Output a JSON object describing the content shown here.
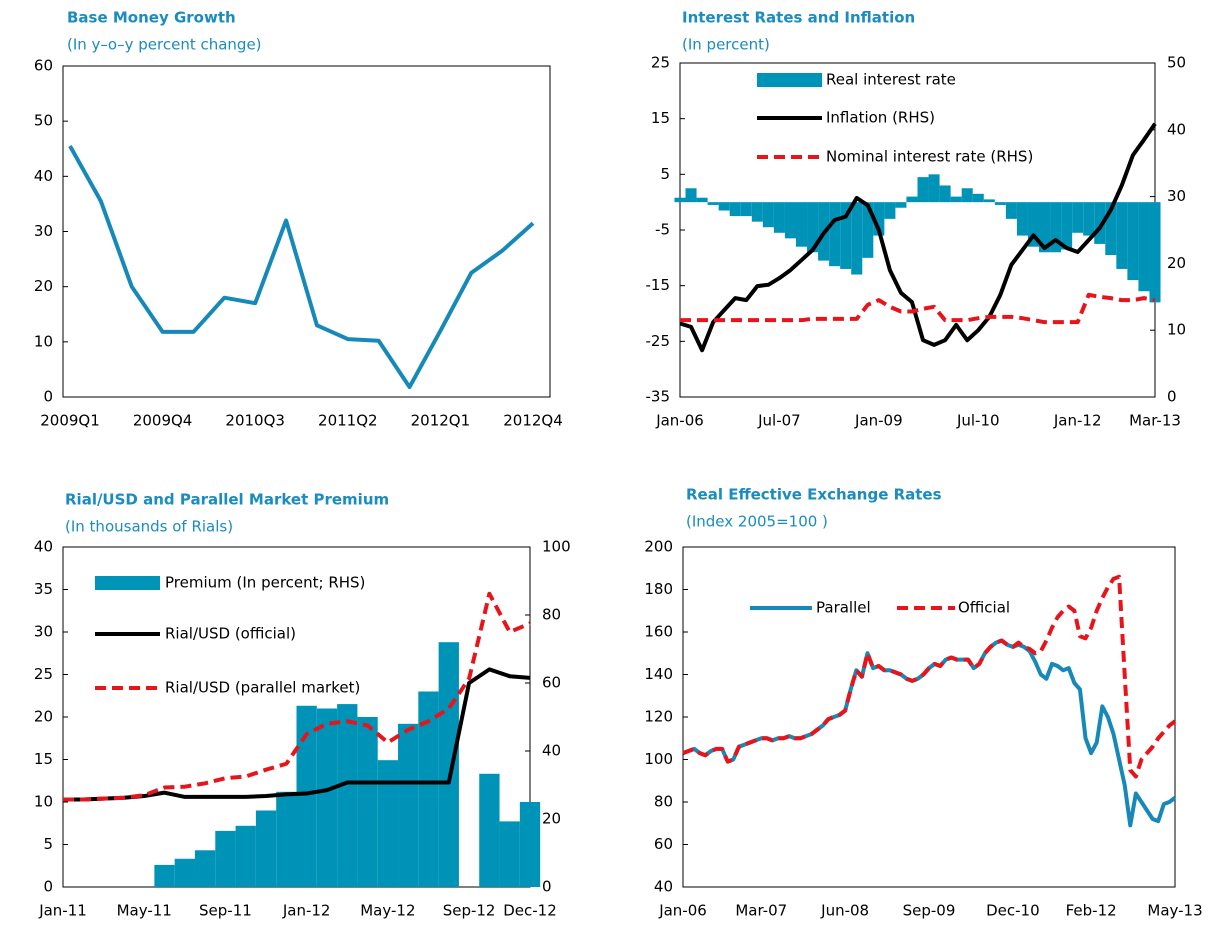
{
  "chart_data": [
    {
      "type": "line",
      "title": "Base Money  Growth",
      "subtitle": "(In y–o–y percent change)",
      "categories": [
        "2009Q1",
        null,
        null,
        "2009Q4",
        null,
        null,
        "2010Q3",
        null,
        null,
        "2011Q2",
        null,
        null,
        "2012Q1",
        null,
        null,
        "2012Q4"
      ],
      "values": [
        45.5,
        35.5,
        20,
        11.8,
        11.8,
        18,
        17,
        32,
        13,
        10.5,
        10.2,
        1.8,
        12,
        22.5,
        26.5,
        31.5
      ],
      "color": "#1689b9",
      "ylim": [
        0,
        60
      ],
      "yticks": [
        0,
        10,
        20,
        30,
        40,
        50,
        60
      ]
    },
    {
      "type": "combo",
      "title": "Interest Rates and Inflation",
      "subtitle": "(In percent)",
      "categories": [
        "Jan-06",
        null,
        null,
        null,
        null,
        null,
        null,
        null,
        null,
        "Jul-07",
        null,
        null,
        null,
        null,
        null,
        null,
        null,
        null,
        "Jan-09",
        null,
        null,
        null,
        null,
        null,
        null,
        null,
        null,
        "Jul-10",
        null,
        null,
        null,
        null,
        null,
        null,
        null,
        null,
        "Jan-12",
        null,
        null,
        null,
        null,
        null,
        null,
        "Mar-13"
      ],
      "series": [
        {
          "name": "Real interest rate",
          "type": "bar",
          "color": "#0093b8",
          "values": [
            0.8,
            2.5,
            0.8,
            -0.5,
            -1.5,
            -2.5,
            -2.5,
            -3.5,
            -4.5,
            -5.5,
            -6.5,
            -8,
            -9,
            -10.5,
            -11.5,
            -12,
            -13,
            -10,
            -6,
            -3,
            -1,
            1,
            4.5,
            5,
            3,
            1,
            2.5,
            1.5,
            0.5,
            -0.5,
            -3,
            -6,
            -8,
            -9,
            -9,
            -8.5,
            -5.5,
            -6,
            -7.5,
            -9.5,
            -12,
            -14,
            -16,
            -18
          ]
        },
        {
          "name": "Inflation (RHS)",
          "type": "line",
          "axis": "y2",
          "color": "#000000",
          "line_style": "solid",
          "values": [
            11,
            10.5,
            7,
            11.2,
            13,
            14.8,
            14.5,
            16.6,
            16.8,
            17.8,
            19,
            20.5,
            22,
            24.5,
            26.5,
            27,
            29.8,
            28.7,
            25,
            19,
            15.6,
            14.2,
            8.5,
            7.8,
            8.5,
            10.8,
            8.5,
            10,
            12,
            15.3,
            19.8,
            22,
            24.2,
            22.3,
            23.5,
            22.3,
            21.7,
            23.5,
            25.3,
            28,
            31.7,
            36.2,
            38.5,
            40.9
          ]
        },
        {
          "name": "Nominal interest rate (RHS)",
          "type": "line",
          "axis": "y2",
          "color": "#e8141b",
          "line_style": "dashed",
          "values": [
            11.5,
            11.5,
            11.5,
            11.5,
            11.5,
            11.5,
            11.5,
            11.5,
            11.5,
            11.5,
            11.5,
            11.5,
            11.7,
            11.7,
            11.7,
            11.7,
            11.7,
            13.8,
            14.5,
            13.5,
            12.8,
            12.8,
            13.2,
            13.5,
            11.5,
            11.5,
            11.5,
            11.8,
            12,
            12,
            12,
            11.8,
            11.5,
            11.2,
            11.2,
            11.2,
            11.2,
            15.3,
            15,
            14.8,
            14.5,
            14.5,
            14.8,
            14.5
          ]
        }
      ],
      "ylim": [
        -35,
        25
      ],
      "yticks": [
        -35,
        -25,
        -15,
        -5,
        5,
        15,
        25
      ],
      "y2lim": [
        0,
        50
      ],
      "y2ticks": [
        0,
        10,
        20,
        30,
        40,
        50
      ]
    },
    {
      "type": "combo",
      "title": "Rial/USD and Parallel Market  Premium",
      "subtitle": "(In thousands of Rials)",
      "categories": [
        "Jan-11",
        null,
        null,
        null,
        "May-11",
        null,
        null,
        null,
        "Sep-11",
        null,
        null,
        null,
        "Jan-12",
        null,
        null,
        null,
        "May-12",
        null,
        null,
        null,
        "Sep-12",
        null,
        null,
        "Dec-12"
      ],
      "series": [
        {
          "name": "Premium (In percent; RHS)",
          "type": "bar",
          "axis": "y2",
          "color": "#0093b8",
          "values": [
            null,
            null,
            null,
            null,
            null,
            6.5,
            8.3,
            10.8,
            16.5,
            18,
            22.5,
            28,
            53.3,
            52.5,
            53.8,
            50,
            37.3,
            48,
            57.5,
            72,
            null,
            33.3,
            19.3,
            25
          ]
        },
        {
          "name": "Rial/USD (official)",
          "type": "line",
          "color": "#000000",
          "line_style": "solid",
          "values": [
            10.3,
            10.3,
            10.4,
            10.5,
            10.7,
            11.1,
            10.6,
            10.6,
            10.6,
            10.6,
            10.7,
            10.9,
            11,
            11.4,
            12.3,
            12.3,
            12.3,
            12.3,
            12.3,
            12.3,
            24,
            25.6,
            24.8,
            24.6
          ]
        },
        {
          "name": "Rial/USD (parallel market)",
          "type": "line",
          "color": "#e8141b",
          "line_style": "dashed",
          "values": [
            10.3,
            10.3,
            10.4,
            10.5,
            10.8,
            11.7,
            11.8,
            12.2,
            12.8,
            13,
            13.8,
            14.5,
            18,
            19.2,
            19.5,
            19,
            17,
            18.5,
            19.5,
            21,
            24.5,
            34.5,
            30,
            31
          ]
        }
      ],
      "ylim": [
        0,
        40
      ],
      "yticks": [
        0,
        5,
        10,
        15,
        20,
        25,
        30,
        35,
        40
      ],
      "y2lim": [
        0,
        100
      ],
      "y2ticks": [
        0,
        20,
        40,
        60,
        80,
        100
      ]
    },
    {
      "type": "line",
      "title": "Real Effective  Exchange Rates",
      "subtitle": "(Index 2005=100 )",
      "categories": [
        "Jan-06",
        null,
        null,
        null,
        null,
        null,
        null,
        null,
        null,
        null,
        null,
        null,
        null,
        null,
        "Mar-07",
        null,
        null,
        null,
        null,
        null,
        null,
        null,
        null,
        null,
        null,
        null,
        null,
        null,
        null,
        "Jun-08",
        null,
        null,
        null,
        null,
        null,
        null,
        null,
        null,
        null,
        null,
        null,
        null,
        null,
        null,
        "Sep-09",
        null,
        null,
        null,
        null,
        null,
        null,
        null,
        null,
        null,
        null,
        null,
        null,
        null,
        null,
        "Dec-10",
        null,
        null,
        null,
        null,
        null,
        null,
        null,
        null,
        null,
        null,
        null,
        null,
        null,
        "Feb-12",
        null,
        null,
        null,
        null,
        null,
        null,
        null,
        null,
        null,
        null,
        null,
        null,
        null,
        null,
        "May-13"
      ],
      "series": [
        {
          "name": "Parallel",
          "color": "#1689b9",
          "line_style": "solid",
          "values": [
            103,
            104,
            105,
            103,
            102,
            104,
            105,
            105,
            99,
            100,
            106,
            107,
            108,
            109,
            110,
            110,
            109,
            110,
            110,
            111,
            110,
            110,
            111,
            112,
            114,
            116,
            119,
            120,
            121,
            123,
            133,
            142,
            139,
            150,
            143,
            144,
            142,
            142,
            141,
            140,
            138,
            137,
            138,
            140,
            143,
            145,
            144,
            147,
            148,
            147,
            147,
            147,
            143,
            145,
            150,
            153,
            155,
            156,
            154,
            153,
            154,
            153,
            151,
            146,
            140,
            138,
            145,
            144,
            142,
            143,
            136,
            133,
            110,
            103,
            108,
            125,
            120,
            112,
            100,
            88,
            69,
            84,
            80,
            76,
            72,
            71,
            79,
            80,
            82
          ]
        },
        {
          "name": "Official",
          "color": "#e8141b",
          "line_style": "dashed",
          "values": [
            103,
            104,
            105,
            103,
            102,
            104,
            105,
            105,
            99,
            100,
            106,
            107,
            108,
            109,
            110,
            110,
            109,
            110,
            110,
            111,
            110,
            110,
            111,
            112,
            114,
            116,
            119,
            120,
            121,
            123,
            133,
            142,
            139,
            150,
            143,
            144,
            142,
            142,
            141,
            140,
            138,
            137,
            138,
            140,
            143,
            145,
            144,
            147,
            148,
            147,
            147,
            147,
            143,
            145,
            150,
            153,
            155,
            156,
            154,
            153,
            155,
            153,
            152,
            150,
            151,
            156,
            162,
            167,
            170,
            172,
            170,
            158,
            157,
            162,
            170,
            176,
            181,
            185,
            186,
            140,
            95,
            92,
            100,
            103,
            106,
            110,
            113,
            116,
            118
          ]
        }
      ],
      "ylim": [
        40,
        200
      ],
      "yticks": [
        40,
        60,
        80,
        100,
        120,
        140,
        160,
        180,
        200
      ]
    }
  ]
}
